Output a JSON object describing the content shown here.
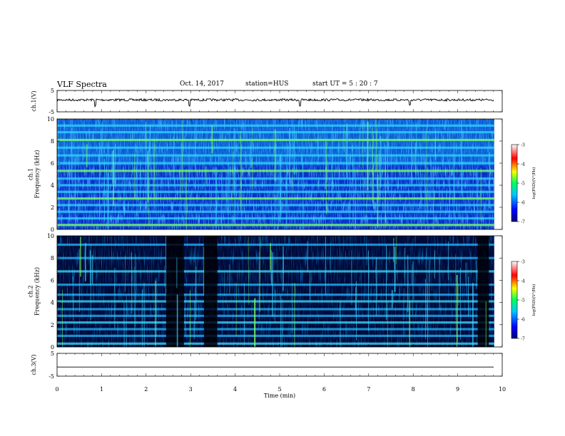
{
  "chart_data": {
    "type": "heatmap",
    "title": "VLF Spectra",
    "date": "Oct. 14, 2017",
    "station": "station=HUS",
    "start": "start  UT =  5 : 20 : 7",
    "xlabel": "Time  (min)",
    "xlim": [
      0,
      10
    ],
    "x_ticks": [
      "0",
      "1",
      "2",
      "3",
      "4",
      "5",
      "6",
      "7",
      "8",
      "9",
      "10"
    ],
    "data_end_min": 9.82,
    "panels": [
      {
        "name": "ch1-voltage",
        "type": "line",
        "ylabel": "ch.1(V)",
        "ylim": [
          -5,
          5
        ],
        "y_ticks": [
          "5",
          "-5"
        ],
        "baseline_v": 0.6,
        "spikes_min": [
          0.85,
          2.98,
          5.45,
          7.92
        ]
      },
      {
        "name": "ch1-spectrogram",
        "type": "heatmap",
        "ylabel": "ch.1\nFrequency  (kHz)",
        "ylim": [
          0,
          10
        ],
        "y_ticks": [
          "0",
          "2",
          "4",
          "6",
          "8",
          "10"
        ],
        "bands_khz": [
          0.4,
          1.0,
          1.6,
          2.2,
          2.8,
          3.4,
          4.0,
          4.6,
          5.3,
          6.0,
          6.7,
          7.4,
          8.1,
          8.8,
          9.4
        ],
        "colorbar": {
          "label": "log(PSD)(V²/Hz)",
          "ticks": [
            "-3",
            "-4",
            "-5",
            "-6",
            "-7"
          ],
          "range": [
            -7,
            -3
          ]
        }
      },
      {
        "name": "ch2-spectrogram",
        "type": "heatmap",
        "ylabel": "ch.2\nFrequency  (kHz)",
        "ylim": [
          0,
          10
        ],
        "y_ticks": [
          "0",
          "2",
          "4",
          "6",
          "8",
          "10"
        ],
        "bands_khz": [
          0.3,
          1.0,
          1.6,
          2.2,
          2.8,
          3.4,
          4.1,
          4.7,
          5.6,
          6.8,
          8.0,
          9.2
        ],
        "dark_intervals_min": [
          [
            2.45,
            2.85
          ],
          [
            3.3,
            3.6
          ],
          [
            9.45,
            9.7
          ]
        ],
        "colorbar": {
          "label": "log(PSD)(V²/Hz)",
          "ticks": [
            "-3",
            "-4",
            "-5",
            "-6",
            "-7"
          ],
          "range": [
            -7,
            -3
          ]
        }
      },
      {
        "name": "ch3-voltage",
        "type": "line",
        "ylabel": "ch.3(V)",
        "ylim": [
          -5,
          5
        ],
        "y_ticks": [
          "5",
          "-5"
        ],
        "baseline_v": -1.0
      }
    ]
  }
}
